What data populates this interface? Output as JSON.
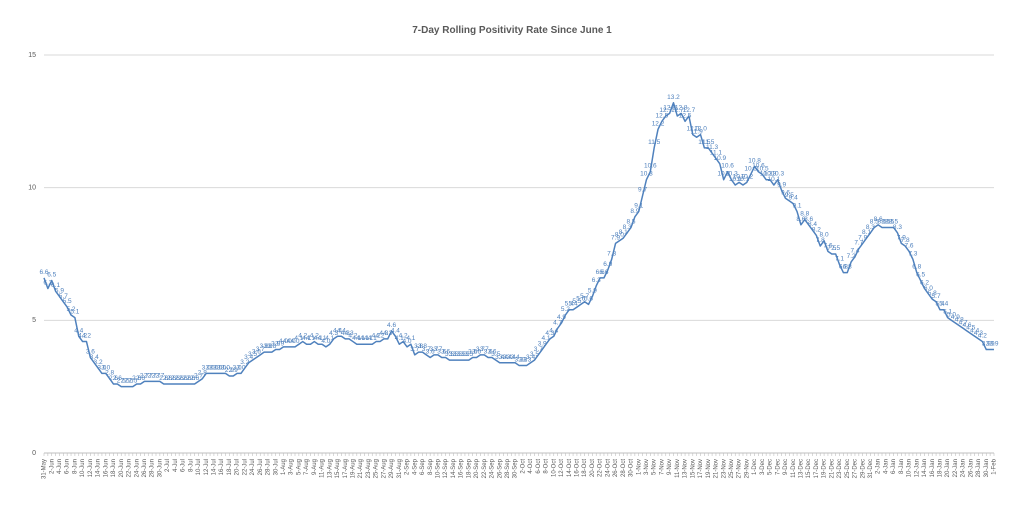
{
  "chart_data": {
    "type": "line",
    "title": "7-Day Rolling Positivity Rate Since June 1",
    "color": "#4f81bd",
    "grid": true,
    "ylim": [
      0,
      15
    ],
    "yticks": [
      0,
      5,
      10,
      15
    ],
    "categories": [
      "31-May",
      null,
      "2-Jun",
      null,
      "4-Jun",
      null,
      "6-Jun",
      null,
      "8-Jun",
      null,
      "10-Jun",
      null,
      "12-Jun",
      null,
      "14-Jun",
      null,
      "16-Jun",
      null,
      "18-Jun",
      null,
      "20-Jun",
      null,
      "22-Jun",
      null,
      "24-Jun",
      null,
      "26-Jun",
      null,
      "28-Jun",
      null,
      "30-Jun",
      null,
      "2-Jul",
      null,
      "4-Jul",
      null,
      "6-Jul",
      null,
      "8-Jul",
      null,
      "10-Jul",
      null,
      "12-Jul",
      null,
      "14-Jul",
      null,
      "16-Jul",
      null,
      "18-Jul",
      null,
      "20-Jul",
      null,
      "22-Jul",
      null,
      "24-Jul",
      null,
      "26-Jul",
      null,
      "28-Jul",
      null,
      "30-Jul",
      null,
      "1-Aug",
      null,
      "3-Aug",
      null,
      "5-Aug",
      null,
      "7-Aug",
      null,
      "9-Aug",
      null,
      "11-Aug",
      null,
      "13-Aug",
      null,
      "15-Aug",
      null,
      "17-Aug",
      null,
      "19-Aug",
      null,
      "21-Aug",
      null,
      "23-Aug",
      null,
      "25-Aug",
      null,
      "27-Aug",
      null,
      "29-Aug",
      null,
      "31-Aug",
      null,
      "2-Sep",
      null,
      "4-Sep",
      null,
      "6-Sep",
      null,
      "8-Sep",
      null,
      "10-Sep",
      null,
      "12-Sep",
      null,
      "14-Sep",
      null,
      "16-Sep",
      null,
      "18-Sep",
      null,
      "20-Sep",
      null,
      "22-Sep",
      null,
      "24-Sep",
      null,
      "26-Sep",
      null,
      "28-Sep",
      null,
      "30-Sep",
      null,
      "2-Oct",
      null,
      "4-Oct",
      null,
      "6-Oct",
      null,
      "8-Oct",
      null,
      "10-Oct",
      null,
      "12-Oct",
      null,
      "14-Oct",
      null,
      "16-Oct",
      null,
      "18-Oct",
      null,
      "20-Oct",
      null,
      "22-Oct",
      null,
      "24-Oct",
      null,
      "26-Oct",
      null,
      "28-Oct",
      null,
      "30-Oct",
      null,
      "1-Nov",
      null,
      "3-Nov",
      null,
      "5-Nov",
      null,
      "7-Nov",
      null,
      "9-Nov",
      null,
      "11-Nov",
      null,
      "13-Nov",
      null,
      "15-Nov",
      null,
      "17-Nov",
      null,
      "19-Nov",
      null,
      "21-Nov",
      null,
      "23-Nov",
      null,
      "25-Nov",
      null,
      "27-Nov",
      null,
      "29-Nov",
      null,
      "1-Dec",
      null,
      "3-Dec",
      null,
      "5-Dec",
      null,
      "7-Dec",
      null,
      "9-Dec",
      null,
      "11-Dec",
      null,
      "13-Dec",
      null,
      "15-Dec",
      null,
      "17-Dec",
      null,
      "19-Dec",
      null,
      "21-Dec",
      null,
      "23-Dec",
      null,
      "25-Dec",
      null,
      "27-Dec",
      null,
      "29-Dec",
      null,
      "31-Dec",
      null,
      "2-Jan",
      null,
      "4-Jan",
      null,
      "6-Jan",
      null,
      "8-Jan",
      null,
      "10-Jan",
      null,
      "12-Jan",
      null,
      "14-Jan",
      null,
      "16-Jan",
      null,
      "18-Jan",
      null,
      "20-Jan",
      null,
      "22-Jan",
      null,
      "24-Jan",
      null,
      "26-Jan",
      null,
      "28-Jan",
      null,
      "30-Jan",
      null,
      "1-Feb"
    ],
    "values": [
      6.6,
      6.2,
      6.5,
      6.1,
      5.9,
      5.7,
      5.5,
      5.2,
      5.1,
      4.4,
      4.2,
      4.2,
      3.6,
      3.4,
      3.2,
      3.0,
      3.0,
      2.8,
      2.6,
      2.6,
      2.5,
      2.5,
      2.5,
      2.5,
      2.6,
      2.6,
      2.7,
      2.7,
      2.7,
      2.7,
      2.7,
      2.6,
      2.6,
      2.6,
      2.6,
      2.6,
      2.6,
      2.6,
      2.6,
      2.6,
      2.7,
      2.8,
      3.0,
      3.0,
      3.0,
      3.0,
      3.0,
      3.0,
      2.9,
      2.9,
      3.0,
      3.0,
      3.2,
      3.4,
      3.5,
      3.6,
      3.7,
      3.8,
      3.8,
      3.8,
      3.9,
      3.9,
      4.0,
      4.0,
      4.0,
      4.0,
      4.1,
      4.2,
      4.1,
      4.1,
      4.2,
      4.1,
      4.1,
      4.0,
      4.1,
      4.3,
      4.4,
      4.4,
      4.3,
      4.3,
      4.2,
      4.1,
      4.1,
      4.1,
      4.1,
      4.1,
      4.2,
      4.2,
      4.3,
      4.3,
      4.6,
      4.4,
      4.1,
      4.2,
      4.0,
      4.1,
      3.7,
      3.8,
      3.8,
      3.7,
      3.6,
      3.7,
      3.7,
      3.6,
      3.6,
      3.5,
      3.5,
      3.5,
      3.5,
      3.5,
      3.5,
      3.6,
      3.6,
      3.7,
      3.7,
      3.6,
      3.6,
      3.5,
      3.4,
      3.4,
      3.4,
      3.4,
      3.4,
      3.3,
      3.3,
      3.3,
      3.4,
      3.5,
      3.7,
      3.9,
      4.1,
      4.3,
      4.4,
      4.7,
      4.9,
      5.2,
      5.4,
      5.4,
      5.5,
      5.6,
      5.7,
      5.6,
      5.9,
      6.3,
      6.6,
      6.6,
      6.9,
      7.3,
      7.9,
      8.0,
      8.1,
      8.3,
      8.5,
      8.9,
      9.1,
      9.7,
      10.3,
      10.6,
      11.5,
      12.2,
      12.5,
      12.7,
      12.8,
      13.2,
      12.7,
      12.8,
      12.5,
      12.7,
      12.0,
      11.9,
      12.0,
      11.5,
      11.5,
      11.3,
      11.1,
      10.9,
      10.3,
      10.6,
      10.3,
      10.1,
      10.2,
      10.1,
      10.2,
      10.5,
      10.8,
      10.6,
      10.5,
      10.3,
      10.3,
      10.1,
      10.3,
      9.9,
      9.6,
      9.5,
      9.4,
      9.1,
      8.6,
      8.8,
      8.6,
      8.4,
      8.2,
      7.8,
      8.0,
      7.6,
      7.5,
      7.5,
      7.1,
      6.8,
      6.8,
      7.2,
      7.4,
      7.7,
      7.9,
      8.1,
      8.3,
      8.5,
      8.6,
      8.5,
      8.5,
      8.5,
      8.5,
      8.3,
      7.9,
      7.8,
      7.6,
      7.3,
      6.8,
      6.5,
      6.2,
      6.0,
      5.8,
      5.7,
      5.4,
      5.4,
      5.1,
      5.0,
      4.9,
      4.8,
      4.7,
      4.6,
      4.5,
      4.4,
      4.3,
      4.2,
      3.9,
      3.9,
      3.9
    ],
    "value_labels": [
      "6.6",
      "6.2",
      "6.5",
      "6.1",
      "5.9",
      "5.7",
      "5.5",
      "5.2",
      "5.1",
      "4.4",
      "4.2",
      "4.2",
      "3.6",
      "3.4",
      "3.2",
      "3.0",
      "3.0",
      "2.8",
      "2.6",
      "2.6",
      "2.5",
      "2.5",
      "2.5",
      "2.5",
      "2.6",
      "2.6",
      "2.7",
      "2.7",
      "2.7",
      "2.7",
      "2.7",
      "2.6",
      "2.6",
      "2.6",
      "2.6",
      "2.6",
      "2.6",
      "2.6",
      "2.6",
      "2.6",
      "2.7",
      "2.8",
      "3.0",
      "3.0",
      "3.0",
      "3.0",
      "3.0",
      "3.0",
      "2.9",
      "2.9",
      "3.0",
      "3.0",
      "3.2",
      "3.4",
      "3.5",
      "3.6",
      "3.7",
      "3.8",
      "3.8",
      "3.8",
      "3.9",
      "3.9",
      "4.0",
      "4.0",
      "4.0",
      "4.0",
      "4.1",
      "4.2",
      "4.1",
      "4.1",
      "4.2",
      "4.1",
      "4.1",
      "4.0",
      "4.1",
      "4.3",
      "4.4",
      "4.4",
      "4.3",
      "4.3",
      "4.2",
      "4.1",
      "4.1",
      "4.1",
      "4.1",
      "4.1",
      "4.2",
      "4.2",
      "4.3",
      "4.3",
      "4.6",
      "4.4",
      "4.1",
      "4.2",
      "4.0",
      "4.1",
      "3.7",
      "3.8",
      "3.8",
      "3.7",
      "3.6",
      "3.7",
      "3.7",
      "3.6",
      "3.6",
      "3.5",
      "3.5",
      "3.5",
      "3.5",
      "3.5",
      "3.5",
      "3.6",
      "3.6",
      "3.7",
      "3.7",
      "3.6",
      "3.6",
      "3.5",
      "3.4",
      "3.4",
      "3.4",
      "3.4",
      "3.4",
      "3.3",
      "3.3",
      "3.3",
      "3.4",
      "3.5",
      "3.7",
      "3.9",
      "4.1",
      "4.3",
      "4.4",
      "4.7",
      "4.9",
      "5.2",
      "5.4",
      "5.4",
      "5.5",
      "5.6",
      "5.7",
      "5.6",
      "5.9",
      "6.3",
      "6.6",
      "6.6",
      "6.9",
      "7.3",
      "7.9",
      "8.0",
      "8.1",
      "8.3",
      "8.5",
      "8.9",
      "9.1",
      "9.7",
      "10.3",
      "10.6",
      "11.5",
      "12.2",
      "12.5",
      "12.7",
      "12.8",
      "13.2",
      "12.7",
      "12.8",
      "12.5",
      "12.7",
      "12.0",
      "11.9",
      "12.0",
      "11.5",
      "11.5",
      "11.3",
      "11.1",
      "10.9",
      "10.3",
      "10.6",
      "10.3",
      "10.1",
      "10.2",
      "10.1",
      "10.2",
      "10.5",
      "10.8",
      "10.6",
      "10.5",
      "10.3",
      "10.3",
      "10.1",
      "10.3",
      "9.9",
      "9.6",
      "9.5",
      "9.4",
      "9.1",
      "8.6",
      "8.8",
      "8.6",
      "8.4",
      "8.2",
      "7.8",
      "8.0",
      "7.6",
      "7.5",
      "7.5",
      "7.1",
      "6.8",
      "6.8",
      "7.2",
      "7.4",
      "7.7",
      "7.9",
      "8.1",
      "8.3",
      "8.5",
      "8.6",
      "8.5",
      "8.5",
      "8.5",
      "8.5",
      "8.3",
      "7.9",
      "7.8",
      "7.6",
      "7.3",
      "6.8",
      "6.5",
      "6.2",
      "6.0",
      "5.8",
      "5.7",
      "5.4",
      "5.4",
      "5.1",
      "5.0",
      "4.9",
      "4.8",
      "4.7",
      "4.6",
      "4.5",
      "4.4",
      "4.3",
      "4.2",
      "3.9",
      "3.9",
      "3.9"
    ]
  }
}
